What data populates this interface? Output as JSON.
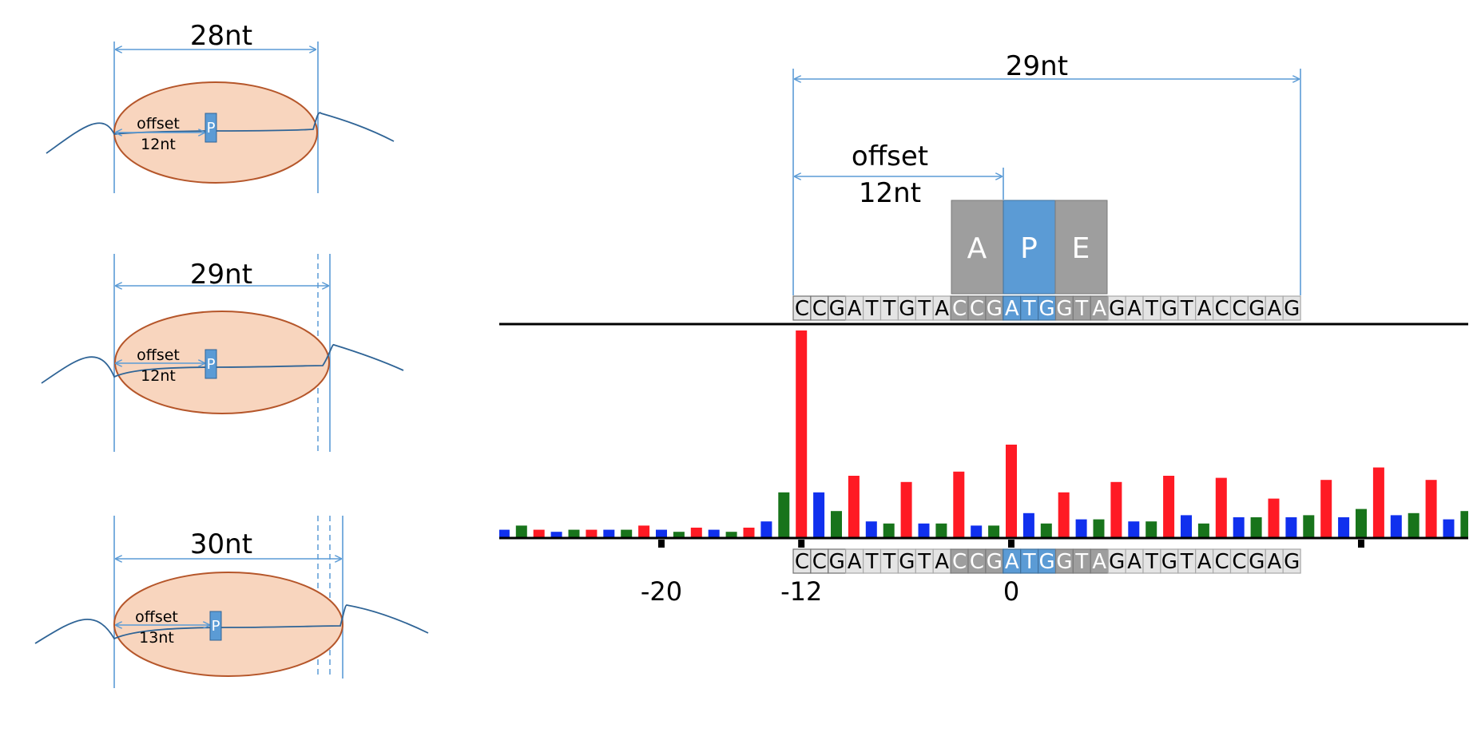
{
  "colors": {
    "arrow": "#5b9bd5",
    "ribosome_fill": "#f8d5be",
    "ribosome_stroke": "#b5562a",
    "p_site": "#5b9bd5",
    "a_e_site": "#9e9e9e",
    "frame0": "#ff1a24",
    "frame1": "#1030ee",
    "frame2": "#18741b",
    "axis": "#000000"
  },
  "panels": [
    {
      "length_label": "28nt",
      "offset_label": "offset",
      "offset_value": "12nt",
      "site_label": "P"
    },
    {
      "length_label": "29nt",
      "offset_label": "offset",
      "offset_value": "12nt",
      "site_label": "P"
    },
    {
      "length_label": "30nt",
      "offset_label": "offset",
      "offset_value": "13nt",
      "site_label": "P"
    }
  ],
  "detail": {
    "length_label": "29nt",
    "offset_label": "offset",
    "offset_value": "12nt",
    "sites": [
      "A",
      "P",
      "E"
    ],
    "sequence": "CCGATTGTACCGATGGTAGATGTACCGAG",
    "sequence_style": [
      0,
      0,
      0,
      1,
      1,
      1,
      1,
      1,
      1,
      2,
      2,
      2,
      3,
      3,
      3,
      2,
      2,
      2,
      1,
      1,
      1,
      1,
      1,
      1,
      1,
      1,
      1,
      1,
      1
    ]
  },
  "chart_data": {
    "type": "bar",
    "description_color_frames": [
      "frame1",
      "frame2",
      "frame0"
    ],
    "x_start": -29,
    "x_end": 25,
    "tick_positions": [
      -20,
      -12,
      0,
      20
    ],
    "tick_labels": [
      {
        "x": -20,
        "label": "-20"
      },
      {
        "x": -12,
        "label": "-12"
      },
      {
        "x": 0,
        "label": "0"
      }
    ],
    "values": [
      4,
      6,
      4,
      3,
      4,
      4,
      4,
      4,
      6,
      4,
      3,
      5,
      4,
      3,
      5,
      8,
      22,
      100,
      22,
      13,
      30,
      8,
      7,
      27,
      7,
      7,
      32,
      6,
      6,
      45,
      12,
      7,
      22,
      9,
      9,
      27,
      8,
      8,
      30,
      11,
      7,
      29,
      10,
      10,
      19,
      10,
      11,
      28,
      10,
      14,
      34,
      11,
      12,
      28,
      9,
      13
    ],
    "frames": [
      1,
      2,
      0,
      1,
      2,
      0,
      1,
      2,
      0,
      1,
      2,
      0,
      1,
      2,
      0,
      1,
      2,
      0,
      1,
      2,
      0,
      1,
      2,
      0,
      1,
      2,
      0,
      1,
      2,
      0,
      1,
      2,
      0,
      1,
      2,
      0,
      1,
      2,
      0,
      1,
      2,
      0,
      1,
      2,
      0,
      1,
      2,
      0,
      1,
      2,
      0,
      1,
      2,
      0,
      1,
      2
    ],
    "ylim": [
      0,
      100
    ]
  },
  "icons": [
    "mrna-strand",
    "ribosome-shape",
    "p-site-marker",
    "dimension-arrow"
  ]
}
